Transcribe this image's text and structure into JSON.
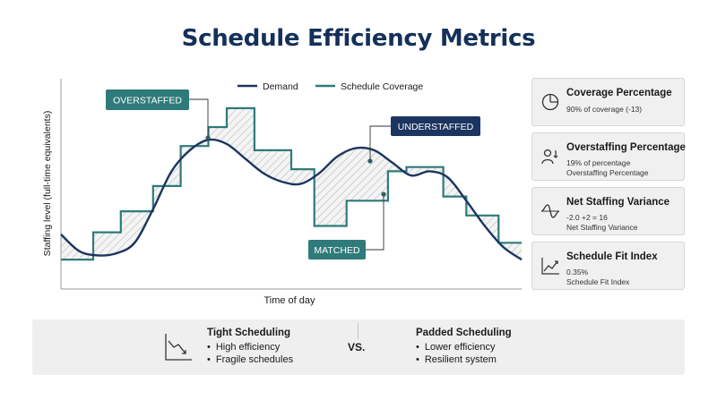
{
  "page": {
    "title": "Schedule Efficiency Metrics"
  },
  "chart_data": {
    "type": "line",
    "title": "Schedule Efficiency Metrics",
    "xlabel": "Time of day",
    "ylabel": "Staffing level (full-time equivalents)",
    "legend": {
      "placement": "top",
      "entries": [
        "Demand",
        "Schedule Coverage"
      ]
    },
    "grid": false,
    "xlim": [
      0,
      100
    ],
    "ylim": [
      0,
      100
    ],
    "series": [
      {
        "name": "Demand",
        "kind": "smooth-line",
        "color": "#1b3560",
        "x": [
          0,
          4,
          8,
          12,
          16,
          20,
          24,
          28,
          32,
          36,
          40,
          44,
          48,
          52,
          56,
          60,
          64,
          68,
          72,
          76,
          80,
          84,
          88,
          92,
          96,
          100
        ],
        "y": [
          26,
          18,
          16,
          17,
          22,
          38,
          56,
          66,
          71,
          69,
          62,
          55,
          51,
          50,
          55,
          63,
          67,
          66,
          60,
          54,
          56,
          53,
          42,
          30,
          20,
          14
        ]
      },
      {
        "name": "Schedule Coverage",
        "kind": "step",
        "color": "#2f7a7a",
        "x": [
          0,
          7,
          13,
          20,
          26,
          32,
          36,
          42,
          50,
          55,
          62,
          68,
          71,
          75,
          83,
          88,
          95,
          100
        ],
        "y": [
          14,
          27,
          37,
          49,
          68,
          77,
          86,
          66,
          57,
          30,
          42,
          42,
          56,
          58,
          44,
          35,
          22,
          22
        ]
      }
    ],
    "annotations": [
      {
        "label": "OVERSTAFFED",
        "style": "filled-teal"
      },
      {
        "label": "UNDERSTAFFED",
        "style": "filled-navy"
      },
      {
        "label": "MATCHED",
        "style": "filled-teal"
      }
    ]
  },
  "metrics": [
    {
      "icon": "pie-chart-icon",
      "title": "Coverage Percentage",
      "lines": [
        "90% of coverage (-13)"
      ]
    },
    {
      "icon": "person-arrows-icon",
      "title": "Overstaffing Percentage",
      "lines": [
        "19% of percentage",
        "Overstaffing Percentage"
      ]
    },
    {
      "icon": "wave-variance-icon",
      "title": "Net Staffing Variance",
      "lines": [
        "-2.0 +2 = 16",
        "Net Staffing Variance"
      ]
    },
    {
      "icon": "trend-line-icon",
      "title": "Schedule Fit Index",
      "lines": [
        "0.35%",
        "Schedule Fit Index"
      ]
    }
  ],
  "comparison": {
    "icon": "downtrend-chart-icon",
    "left": {
      "title": "Tight Scheduling",
      "items": [
        "High efficiency",
        "Fragile schedules"
      ]
    },
    "vs": "VS.",
    "right": {
      "title": "Padded Scheduling",
      "items": [
        "Lower efficiency",
        "Resilient system"
      ]
    }
  },
  "colors": {
    "navy": "#1b3560",
    "teal": "#2f7a7a",
    "title": "#14305a",
    "card_bg": "#f0f0f0"
  }
}
